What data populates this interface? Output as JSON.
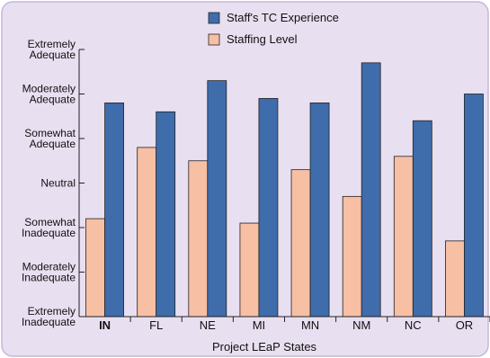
{
  "colors": {
    "background": "#e8dff0",
    "border": "#c8b6d8",
    "series_experience": "#3f6cab",
    "series_staffing": "#f7bfa4",
    "highlight_label": "#f49a6c",
    "axis": "#222222"
  },
  "chart_data": {
    "type": "bar",
    "xlabel": "Project LEaP States",
    "categories": [
      "IN",
      "FL",
      "NE",
      "MI",
      "MN",
      "NM",
      "NC",
      "OR"
    ],
    "highlighted_category": "IN",
    "y_ticks": [
      {
        "value": 1,
        "lines": [
          "Extremely",
          "Inadequate"
        ]
      },
      {
        "value": 2,
        "lines": [
          "Moderately",
          "Inadequate"
        ]
      },
      {
        "value": 3,
        "lines": [
          "Somewhat",
          "Inadequate"
        ]
      },
      {
        "value": 4,
        "lines": [
          "Neutral"
        ]
      },
      {
        "value": 5,
        "lines": [
          "Somewhat",
          "Adequate"
        ]
      },
      {
        "value": 6,
        "lines": [
          "Moderately",
          "Adequate"
        ]
      },
      {
        "value": 7,
        "lines": [
          "Extremely",
          "Adequate"
        ]
      }
    ],
    "ylim": [
      1,
      7
    ],
    "legend_position": "top",
    "series": [
      {
        "name": "Staff's TC Experience",
        "color_key": "series_experience",
        "values": [
          5.8,
          5.6,
          6.3,
          5.9,
          5.8,
          6.7,
          5.4,
          6.0
        ]
      },
      {
        "name": "Staffing Level",
        "color_key": "series_staffing",
        "values": [
          3.2,
          4.8,
          4.5,
          3.1,
          4.3,
          3.7,
          4.6,
          2.7
        ]
      }
    ]
  }
}
